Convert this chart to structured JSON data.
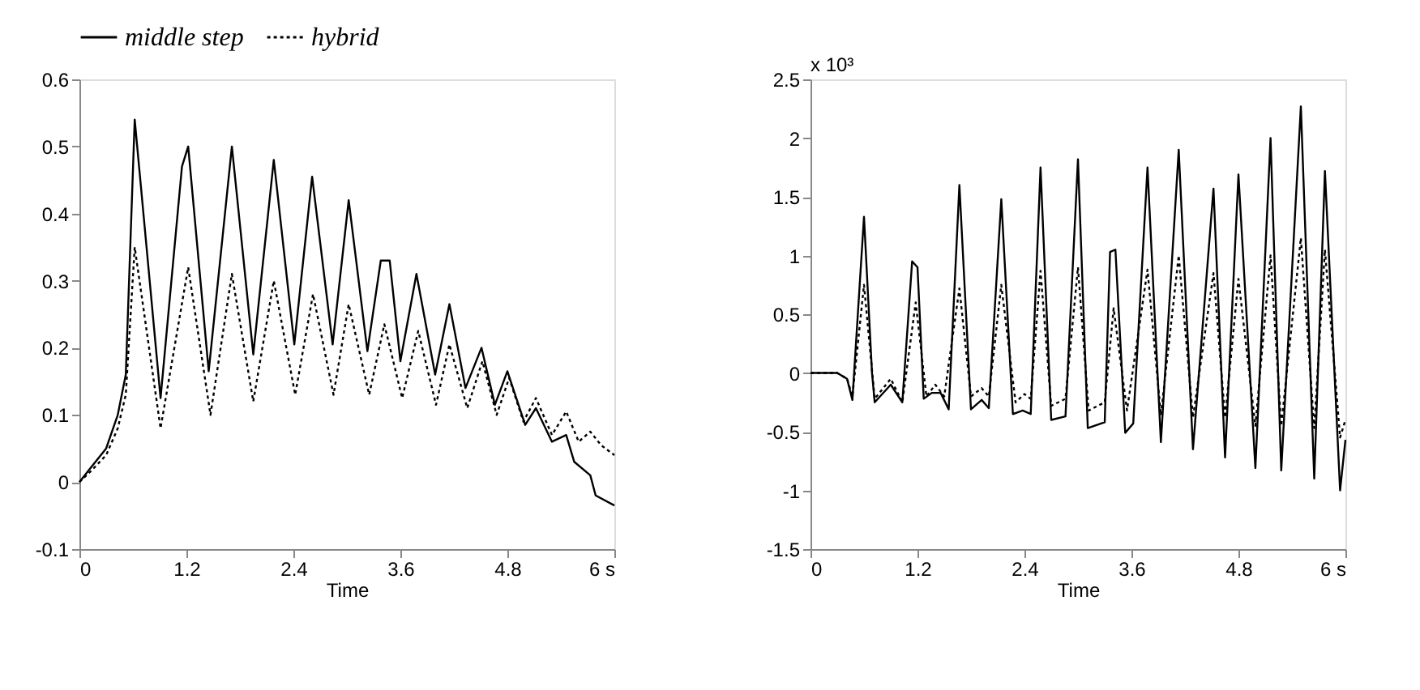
{
  "chart_data": [
    {
      "type": "line",
      "xlabel": "Time",
      "legend": "top",
      "xlim": [
        0,
        6
      ],
      "ylim": [
        -0.1,
        0.6
      ],
      "xticks": [
        0,
        1.2,
        2.4,
        3.6,
        4.8,
        {
          "value": 6,
          "label": "6 s"
        }
      ],
      "yticks": [
        -0.1,
        0,
        0.1,
        0.2,
        0.3,
        0.4,
        0.5,
        0.6
      ],
      "series": [
        {
          "name": "middle step",
          "color": "#000000",
          "line_style": "solid",
          "x": [
            0,
            0.12,
            0.3,
            0.43,
            0.52,
            0.62,
            0.91,
            1.15,
            1.22,
            1.45,
            1.71,
            1.95,
            2.18,
            2.41,
            2.61,
            2.84,
            3.02,
            3.23,
            3.38,
            3.48,
            3.6,
            3.78,
            3.99,
            4.15,
            4.33,
            4.51,
            4.66,
            4.8,
            5.0,
            5.12,
            5.3,
            5.46,
            5.55,
            5.73,
            5.79,
            6.0
          ],
          "values": [
            0,
            0.02,
            0.05,
            0.1,
            0.16,
            0.54,
            0.125,
            0.47,
            0.5,
            0.165,
            0.5,
            0.19,
            0.48,
            0.205,
            0.455,
            0.205,
            0.42,
            0.195,
            0.33,
            0.33,
            0.18,
            0.31,
            0.16,
            0.265,
            0.14,
            0.2,
            0.115,
            0.165,
            0.085,
            0.11,
            0.06,
            0.07,
            0.03,
            0.01,
            -0.02,
            -0.035
          ]
        },
        {
          "name": "hybrid",
          "color": "#000000",
          "line_style": "dotted",
          "x": [
            0,
            0.12,
            0.3,
            0.43,
            0.52,
            0.62,
            0.91,
            1.22,
            1.47,
            1.71,
            1.95,
            2.18,
            2.42,
            2.62,
            2.85,
            3.02,
            3.25,
            3.42,
            3.62,
            3.8,
            4.0,
            4.15,
            4.35,
            4.52,
            4.68,
            4.82,
            4.98,
            5.12,
            5.3,
            5.46,
            5.6,
            5.73,
            5.85,
            6.0
          ],
          "values": [
            0,
            0.015,
            0.04,
            0.08,
            0.13,
            0.35,
            0.08,
            0.32,
            0.1,
            0.31,
            0.12,
            0.3,
            0.13,
            0.28,
            0.13,
            0.265,
            0.13,
            0.235,
            0.125,
            0.225,
            0.115,
            0.205,
            0.11,
            0.18,
            0.1,
            0.155,
            0.09,
            0.125,
            0.07,
            0.105,
            0.06,
            0.075,
            0.055,
            0.04
          ]
        }
      ]
    },
    {
      "type": "line",
      "xlabel": "Time",
      "annotations": [
        "x 10³"
      ],
      "xlim": [
        0,
        6
      ],
      "ylim": [
        -1.5,
        2.5
      ],
      "xticks": [
        0,
        1.2,
        2.4,
        3.6,
        4.8,
        {
          "value": 6,
          "label": "6 s"
        }
      ],
      "yticks": [
        -1.5,
        -1,
        -0.5,
        0,
        0.5,
        1,
        1.5,
        2,
        2.5
      ],
      "series": [
        {
          "color": "#000000",
          "line_style": "solid",
          "x": [
            0,
            0.3,
            0.41,
            0.47,
            0.6,
            0.69,
            0.72,
            0.9,
            1.03,
            1.14,
            1.2,
            1.27,
            1.36,
            1.46,
            1.55,
            1.67,
            1.8,
            1.92,
            2.0,
            2.14,
            2.27,
            2.38,
            2.47,
            2.58,
            2.7,
            2.86,
            3.0,
            3.11,
            3.3,
            3.36,
            3.42,
            3.53,
            3.62,
            3.78,
            3.93,
            4.13,
            4.29,
            4.52,
            4.65,
            4.8,
            4.99,
            5.16,
            5.28,
            5.5,
            5.65,
            5.77,
            5.94,
            6.0
          ],
          "values": [
            0,
            0,
            -0.05,
            -0.23,
            1.33,
            0,
            -0.25,
            -0.1,
            -0.25,
            0.95,
            0.9,
            -0.22,
            -0.17,
            -0.17,
            -0.31,
            1.6,
            -0.31,
            -0.23,
            -0.3,
            1.48,
            -0.35,
            -0.32,
            -0.35,
            1.75,
            -0.4,
            -0.37,
            1.82,
            -0.47,
            -0.42,
            1.03,
            1.05,
            -0.51,
            -0.43,
            1.75,
            -0.59,
            1.9,
            -0.65,
            1.57,
            -0.72,
            1.69,
            -0.81,
            2.0,
            -0.83,
            2.27,
            -0.9,
            1.72,
            -1.0,
            -0.57
          ]
        },
        {
          "color": "#000000",
          "line_style": "dotted",
          "x": [
            0,
            0.3,
            0.41,
            0.47,
            0.6,
            0.72,
            0.9,
            1.03,
            1.18,
            1.3,
            1.4,
            1.5,
            1.67,
            1.8,
            1.92,
            2.0,
            2.14,
            2.3,
            2.4,
            2.47,
            2.58,
            2.7,
            2.86,
            3.0,
            3.12,
            3.3,
            3.4,
            3.55,
            3.78,
            3.93,
            4.13,
            4.29,
            4.52,
            4.65,
            4.8,
            4.99,
            5.16,
            5.28,
            5.5,
            5.65,
            5.77,
            5.94,
            6.0
          ],
          "values": [
            0,
            0,
            -0.05,
            -0.2,
            0.75,
            -0.22,
            -0.05,
            -0.25,
            0.6,
            -0.2,
            -0.1,
            -0.2,
            0.72,
            -0.2,
            -0.13,
            -0.2,
            0.75,
            -0.25,
            -0.18,
            -0.22,
            0.87,
            -0.28,
            -0.22,
            0.9,
            -0.32,
            -0.25,
            0.55,
            -0.32,
            0.88,
            -0.36,
            1.0,
            -0.38,
            0.85,
            -0.38,
            0.8,
            -0.45,
            1.0,
            -0.45,
            1.15,
            -0.47,
            1.05,
            -0.55,
            -0.4
          ]
        }
      ]
    }
  ]
}
